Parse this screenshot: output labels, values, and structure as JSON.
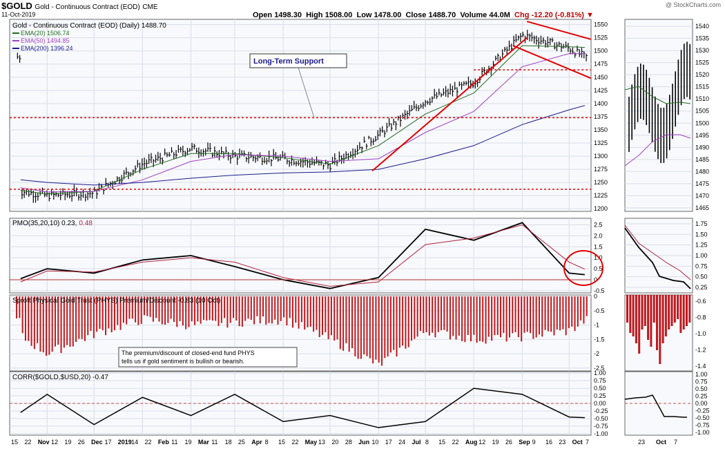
{
  "header": {
    "symbol": "$GOLD",
    "description": "Gold - Continuous Contract (EOD)",
    "exchange": "CME",
    "date": "11-Oct-2019",
    "open_label": "Open",
    "open": "1498.30",
    "high_label": "High",
    "high": "1508.00",
    "low_label": "Low",
    "low": "1478.00",
    "close_label": "Close",
    "close": "1488.70",
    "volume_label": "Volume",
    "volume": "44.0M",
    "chg_label": "Chg",
    "chg": "-12.20 (-0.81%)",
    "copyright": "@ StockCharts.com"
  },
  "colors": {
    "price_bar": "#000000",
    "ema20": "#1f6b1f",
    "ema50": "#a040c0",
    "ema200": "#1a1a8c",
    "trend": "#e00000",
    "histogram": "#c0181c",
    "pmo_signal": "#b0203a",
    "grid": "#d8dde8",
    "panel_bg": "#f8f9fc"
  },
  "chart_data": [
    {
      "type": "line",
      "panel": "price",
      "title": "Gold - Continuous Contract (EOD) (Daily) 1488.70",
      "legend": [
        {
          "name": "EMA(20) 1506.74",
          "color": "#1f6b1f"
        },
        {
          "name": "EMA(50) 1494.85",
          "color": "#a040c0"
        },
        {
          "name": "EMA(200) 1396.24",
          "color": "#1a1a8c"
        }
      ],
      "x": [
        "2018-10-15",
        "2018-11-01",
        "2018-12-01",
        "2019-01-01",
        "2019-02-01",
        "2019-03-01",
        "2019-04-01",
        "2019-05-01",
        "2019-06-01",
        "2019-07-01",
        "2019-08-01",
        "2019-09-01",
        "2019-10-01",
        "2019-10-11"
      ],
      "series": [
        {
          "values": [
            1233,
            1225,
            1230,
            1285,
            1315,
            1300,
            1295,
            1283,
            1340,
            1405,
            1440,
            1530,
            1505,
            1488.7
          ]
        },
        {
          "values": [
            1235,
            1228,
            1233,
            1275,
            1305,
            1305,
            1297,
            1285,
            1320,
            1380,
            1420,
            1510,
            1508,
            1506.74
          ]
        },
        {
          "values": [
            1240,
            1232,
            1233,
            1255,
            1290,
            1303,
            1300,
            1290,
            1295,
            1345,
            1385,
            1470,
            1495,
            1494.85
          ]
        },
        {
          "values": [
            1255,
            1250,
            1245,
            1250,
            1258,
            1264,
            1268,
            1270,
            1275,
            1295,
            1320,
            1360,
            1388,
            1396.24
          ]
        }
      ],
      "ylim": [
        1195,
        1560
      ],
      "y_ticks": [
        1200,
        1225,
        1250,
        1275,
        1300,
        1325,
        1350,
        1375,
        1400,
        1425,
        1450,
        1475,
        1500,
        1525,
        1550
      ],
      "annotations": [
        {
          "text": "Long-Term Support"
        }
      ],
      "support_levels": [
        1373,
        1237,
        1464
      ]
    },
    {
      "type": "line",
      "panel": "pmo",
      "title": "PMO(35,20,10) 0.23, 0.48",
      "title_main": "PMO(35,20,10) 0.23,",
      "title_signal": "0.48",
      "x": [
        "2018-10-15",
        "2018-11-01",
        "2018-12-01",
        "2019-01-01",
        "2019-02-01",
        "2019-03-01",
        "2019-04-01",
        "2019-05-01",
        "2019-06-01",
        "2019-07-01",
        "2019-08-01",
        "2019-09-01",
        "2019-10-01",
        "2019-10-11"
      ],
      "series": [
        {
          "values": [
            0.05,
            0.5,
            0.3,
            0.9,
            1.1,
            0.6,
            0.0,
            -0.4,
            0.1,
            2.3,
            1.8,
            2.6,
            0.3,
            0.23
          ]
        },
        {
          "values": [
            -0.1,
            0.4,
            0.35,
            0.8,
            1.0,
            0.8,
            0.1,
            -0.3,
            -0.1,
            1.6,
            1.9,
            2.5,
            0.8,
            0.48
          ]
        }
      ],
      "ylim": [
        -0.6,
        2.8
      ],
      "y_ticks": [
        -0.5,
        0.0,
        0.5,
        1.0,
        1.5,
        2.0,
        2.5
      ],
      "y_tick_labels": [
        "-0.5",
        "0",
        "0.5",
        "1.0",
        "1.5",
        "2.0",
        "2.5"
      ]
    },
    {
      "type": "bar",
      "panel": "premium",
      "title": "Sprott Physical Gold Trust (PHYS) Premium/Discount -0.83 (10 Oct)",
      "x": [
        "2018-10-15",
        "2018-11-01",
        "2018-12-01",
        "2019-01-01",
        "2019-02-01",
        "2019-03-01",
        "2019-04-01",
        "2019-05-01",
        "2019-06-01",
        "2019-07-01",
        "2019-08-01",
        "2019-09-01",
        "2019-10-01",
        "2019-10-11"
      ],
      "series": [
        {
          "values": [
            -1.4,
            -2.0,
            -1.3,
            -0.8,
            -1.0,
            -0.9,
            -0.8,
            -1.5,
            -2.4,
            -1.2,
            -1.5,
            -1.4,
            -1.2,
            -0.83
          ]
        }
      ],
      "ylim": [
        -2.6,
        0.05
      ],
      "y_ticks": [
        -2.5,
        -2.0,
        -1.5,
        -1.0,
        -0.5,
        0.0
      ],
      "annotations": [
        {
          "text": "The premium/discount of closed-end fund PHYS"
        },
        {
          "text": "tells us if gold sentiment is bullish or bearish."
        }
      ]
    },
    {
      "type": "line",
      "panel": "corr",
      "title": "CORR($GOLD,$USD,20) -0.47",
      "x": [
        "2018-10-15",
        "2018-11-01",
        "2018-12-01",
        "2019-01-01",
        "2019-02-01",
        "2019-03-01",
        "2019-04-01",
        "2019-05-01",
        "2019-06-01",
        "2019-07-01",
        "2019-08-01",
        "2019-09-01",
        "2019-10-01",
        "2019-10-11"
      ],
      "series": [
        {
          "values": [
            -0.3,
            0.3,
            -0.7,
            0.2,
            -0.4,
            0.3,
            -0.6,
            -0.4,
            -0.8,
            -0.6,
            0.5,
            0.3,
            -0.45,
            -0.47
          ]
        }
      ],
      "ylim": [
        -1.05,
        1.05
      ],
      "y_ticks": [
        -1.0,
        -0.75,
        -0.5,
        -0.25,
        0.0,
        0.25,
        0.5,
        0.75,
        1.0
      ],
      "y_tick_labels": [
        "-1.00",
        "-0.75",
        "-0.50",
        "-0.25",
        "0.00",
        "0.25",
        "0.50",
        "0.75",
        "1.00"
      ]
    },
    {
      "type": "line",
      "panel": "zoom",
      "x_labels": [
        "23",
        "Oct",
        "7"
      ],
      "price_ticks": [
        1465,
        1470,
        1475,
        1480,
        1485,
        1490,
        1495,
        1500,
        1505,
        1510,
        1515,
        1520,
        1525,
        1530,
        1535,
        1540
      ],
      "pmo_ticks": [
        "0.25",
        "0.50",
        "0.75",
        "1.00",
        "1.25",
        "1.50",
        "1.75"
      ],
      "premium_ticks": [
        "-0.6",
        "-0.8",
        "-1.0",
        "-1.2",
        "-1.4"
      ],
      "corr_ticks": [
        "-1.00",
        "-0.75",
        "-0.50",
        "-0.25",
        "0.00",
        "0.25",
        "0.50",
        "0.75",
        "1.00"
      ]
    }
  ],
  "x_axis_labels": [
    "15",
    "22",
    "Nov",
    "12",
    "19",
    "26",
    "Dec",
    "17",
    "2019",
    "14",
    "22",
    "Feb",
    "11",
    "19",
    "Mar",
    "11",
    "18",
    "25",
    "Apr",
    "8",
    "15",
    "22",
    "May",
    "13",
    "20",
    "28",
    "Jun",
    "10",
    "17",
    "24",
    "Jul",
    "8",
    "15",
    "22",
    "Aug",
    "12",
    "19",
    "26",
    "Sep",
    "9",
    "16",
    "23",
    "Oct",
    "7"
  ]
}
